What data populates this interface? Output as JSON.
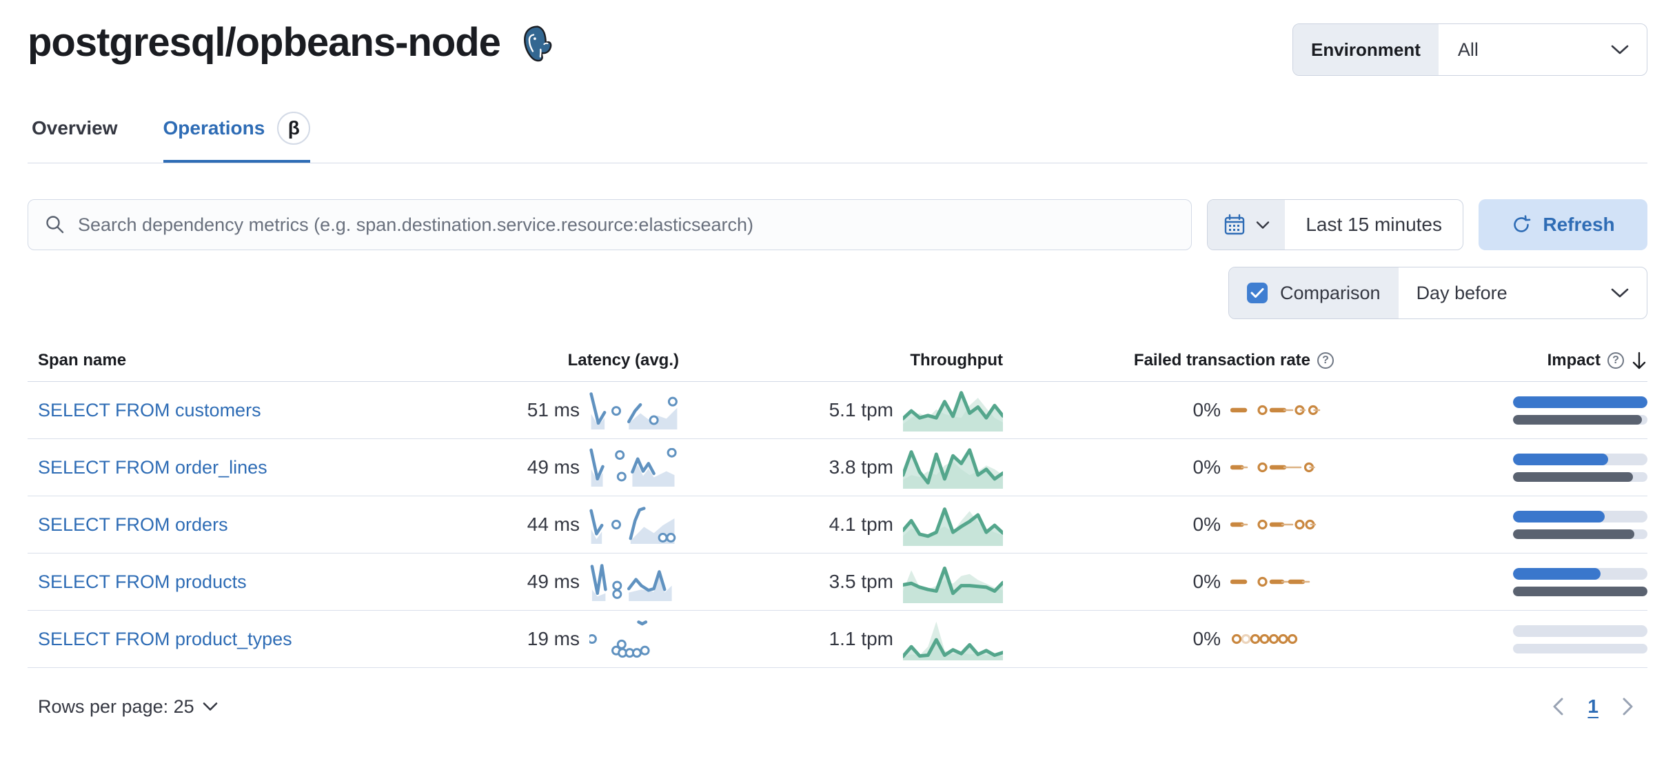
{
  "header": {
    "title": "postgresql/opbeans-node",
    "environment_label": "Environment",
    "environment_value": "All"
  },
  "tabs": {
    "overview": "Overview",
    "operations": "Operations",
    "beta_badge": "β"
  },
  "controls": {
    "search_placeholder": "Search dependency metrics (e.g. span.destination.service.resource:elasticsearch)",
    "time_range": "Last 15 minutes",
    "refresh_label": "Refresh",
    "comparison_label": "Comparison",
    "comparison_checked": true,
    "comparison_value": "Day before"
  },
  "table": {
    "columns": {
      "span_name": "Span name",
      "latency": "Latency (avg.)",
      "throughput": "Throughput",
      "failed_rate": "Failed transaction rate",
      "impact": "Impact"
    },
    "rows": [
      {
        "span_name": "SELECT FROM customers",
        "latency": "51 ms",
        "throughput": "5.1 tpm",
        "failed_rate": "0%",
        "impact": {
          "current": 100,
          "previous": 96
        },
        "latency_spark": {
          "segments": [
            [
              [
                2,
                8
              ],
              [
                10,
                84
              ],
              [
                17,
                56
              ]
            ],
            [
              [
                44,
                80
              ],
              [
                51,
                52
              ],
              [
                57,
                36
              ]
            ]
          ],
          "areas": [
            [
              [
                2,
                60
              ],
              [
                10,
                90
              ],
              [
                17,
                70
              ],
              [
                17,
                100
              ],
              [
                2,
                100
              ]
            ],
            [
              [
                44,
                84
              ],
              [
                57,
                58
              ],
              [
                66,
                74
              ],
              [
                76,
                64
              ],
              [
                86,
                72
              ],
              [
                98,
                44
              ],
              [
                98,
                100
              ],
              [
                44,
                100
              ]
            ]
          ],
          "dots": [
            [
              30,
              52
            ],
            [
              72,
              76
            ],
            [
              93,
              28
            ]
          ]
        },
        "throughput_spark": {
          "line": [
            28,
            48,
            30,
            36,
            30,
            72,
            34,
            95,
            42,
            58,
            30,
            62,
            35
          ],
          "comp": [
            14,
            30,
            42,
            30,
            52,
            40,
            34,
            30,
            62,
            82,
            55,
            30,
            18
          ]
        },
        "failed_spark": [
          {
            "t": "dash",
            "x": 2,
            "w": 12
          },
          {
            "t": "circle",
            "x": 27
          },
          {
            "t": "dash",
            "x": 40,
            "w": 12
          },
          {
            "t": "line",
            "x": 52,
            "w": 8
          },
          {
            "t": "circle",
            "x": 63
          },
          {
            "t": "line",
            "x": 68,
            "w": 4
          },
          {
            "t": "circle",
            "x": 76
          },
          {
            "t": "line",
            "x": 81,
            "w": 5
          }
        ]
      },
      {
        "span_name": "SELECT FROM order_lines",
        "latency": "49 ms",
        "throughput": "3.8 tpm",
        "failed_rate": "0%",
        "impact": {
          "current": 71,
          "previous": 89
        },
        "latency_spark": {
          "segments": [
            [
              [
                2,
                5
              ],
              [
                9,
                80
              ],
              [
                15,
                48
              ]
            ],
            [
              [
                48,
                62
              ],
              [
                54,
                28
              ],
              [
                60,
                60
              ],
              [
                66,
                40
              ],
              [
                72,
                66
              ]
            ]
          ],
          "areas": [
            [
              [
                2,
                55
              ],
              [
                9,
                86
              ],
              [
                15,
                64
              ],
              [
                15,
                100
              ],
              [
                2,
                100
              ]
            ],
            [
              [
                48,
                68
              ],
              [
                54,
                44
              ],
              [
                60,
                72
              ],
              [
                66,
                54
              ],
              [
                72,
                76
              ],
              [
                86,
                60
              ],
              [
                95,
                70
              ],
              [
                95,
                100
              ],
              [
                48,
                100
              ]
            ]
          ],
          "dots": [
            [
              34,
              18
            ],
            [
              36,
              74
            ],
            [
              92,
              12
            ]
          ]
        },
        "throughput_spark": {
          "line": [
            30,
            90,
            38,
            10,
            84,
            20,
            80,
            60,
            95,
            30,
            45,
            20,
            35
          ],
          "comp": [
            18,
            30,
            25,
            40,
            30,
            55,
            65,
            45,
            30,
            40,
            55,
            45,
            30
          ]
        },
        "failed_spark": [
          {
            "t": "dash",
            "x": 2,
            "w": 9
          },
          {
            "t": "line",
            "x": 11,
            "w": 5
          },
          {
            "t": "circle",
            "x": 27
          },
          {
            "t": "dash",
            "x": 40,
            "w": 12
          },
          {
            "t": "line",
            "x": 52,
            "w": 16
          },
          {
            "t": "circle",
            "x": 72
          },
          {
            "t": "line",
            "x": 77,
            "w": 4
          }
        ]
      },
      {
        "span_name": "SELECT FROM orders",
        "latency": "44 ms",
        "throughput": "4.1 tpm",
        "failed_rate": "0%",
        "impact": {
          "current": 68,
          "previous": 90
        },
        "latency_spark": {
          "segments": [
            [
              [
                2,
                14
              ],
              [
                8,
                74
              ],
              [
                14,
                52
              ]
            ],
            [
              [
                46,
                86
              ],
              [
                51,
                40
              ],
              [
                56,
                12
              ],
              [
                61,
                8
              ]
            ]
          ],
          "areas": [
            [
              [
                2,
                62
              ],
              [
                8,
                88
              ],
              [
                14,
                68
              ],
              [
                14,
                100
              ],
              [
                2,
                100
              ]
            ],
            [
              [
                46,
                92
              ],
              [
                61,
                56
              ],
              [
                72,
                72
              ],
              [
                82,
                52
              ],
              [
                95,
                34
              ],
              [
                95,
                100
              ],
              [
                46,
                100
              ]
            ]
          ],
          "dots": [
            [
              30,
              50
            ],
            [
              82,
              84
            ],
            [
              91,
              84
            ]
          ]
        },
        "throughput_spark": {
          "line": [
            35,
            60,
            25,
            20,
            30,
            90,
            30,
            45,
            58,
            75,
            30,
            48,
            28
          ],
          "comp": [
            20,
            40,
            30,
            25,
            35,
            45,
            30,
            60,
            85,
            55,
            40,
            30,
            22
          ]
        },
        "failed_spark": [
          {
            "t": "dash",
            "x": 2,
            "w": 9
          },
          {
            "t": "line",
            "x": 11,
            "w": 5
          },
          {
            "t": "circle",
            "x": 27
          },
          {
            "t": "dash",
            "x": 40,
            "w": 10
          },
          {
            "t": "line",
            "x": 50,
            "w": 10
          },
          {
            "t": "circle",
            "x": 63
          },
          {
            "t": "circle",
            "x": 73
          },
          {
            "t": "line",
            "x": 78,
            "w": 4
          }
        ]
      },
      {
        "span_name": "SELECT FROM products",
        "latency": "49 ms",
        "throughput": "3.5 tpm",
        "failed_rate": "0%",
        "impact": {
          "current": 65,
          "previous": 100
        },
        "latency_spark": {
          "segments": [
            [
              [
                3,
                10
              ],
              [
                9,
                80
              ],
              [
                14,
                8
              ],
              [
                18,
                70
              ]
            ],
            [
              [
                44,
                68
              ],
              [
                52,
                44
              ],
              [
                58,
                60
              ],
              [
                66,
                72
              ],
              [
                72,
                68
              ],
              [
                78,
                24
              ],
              [
                84,
                70
              ]
            ]
          ],
          "areas": [
            [
              [
                3,
                70
              ],
              [
                9,
                88
              ],
              [
                18,
                80
              ],
              [
                18,
                100
              ],
              [
                3,
                100
              ]
            ],
            [
              [
                44,
                78
              ],
              [
                58,
                70
              ],
              [
                72,
                76
              ],
              [
                78,
                36
              ],
              [
                84,
                78
              ],
              [
                92,
                60
              ],
              [
                92,
                100
              ],
              [
                44,
                100
              ]
            ]
          ],
          "dots": [
            [
              31,
              60
            ],
            [
              31,
              82
            ]
          ]
        },
        "throughput_spark": {
          "line": [
            42,
            46,
            36,
            30,
            26,
            85,
            20,
            40,
            40,
            38,
            36,
            26,
            48
          ],
          "comp": [
            25,
            80,
            35,
            30,
            40,
            55,
            45,
            65,
            70,
            55,
            45,
            35,
            28
          ]
        },
        "failed_spark": [
          {
            "t": "dash",
            "x": 2,
            "w": 12
          },
          {
            "t": "circle",
            "x": 27
          },
          {
            "t": "dash",
            "x": 40,
            "w": 10
          },
          {
            "t": "line",
            "x": 50,
            "w": 8
          },
          {
            "t": "dash",
            "x": 58,
            "w": 12
          },
          {
            "t": "line",
            "x": 70,
            "w": 6
          }
        ]
      },
      {
        "span_name": "SELECT FROM product_types",
        "latency": "19 ms",
        "throughput": "1.1 tpm",
        "failed_rate": "0%",
        "impact": {
          "current": 0,
          "previous": 0
        },
        "latency_spark": {
          "segments": [
            [
              [
                55,
                6
              ],
              [
                59,
                11
              ],
              [
                63,
                6
              ]
            ]
          ],
          "areas": [],
          "dots": [
            [
              3,
              50
            ],
            [
              30,
              80
            ],
            [
              36,
              64
            ],
            [
              37,
              86
            ],
            [
              45,
              86
            ],
            [
              53,
              86
            ],
            [
              62,
              80
            ]
          ]
        },
        "throughput_spark": {
          "line": [
            5,
            30,
            6,
            8,
            48,
            8,
            22,
            12,
            35,
            10,
            20,
            8,
            15
          ],
          "comp": [
            4,
            10,
            8,
            30,
            95,
            20,
            10,
            15,
            10,
            12,
            8,
            10,
            6
          ]
        },
        "failed_spark": [
          {
            "t": "circle",
            "x": 2
          },
          {
            "t": "circle",
            "x": 11,
            "faded": true
          },
          {
            "t": "circle",
            "x": 20
          },
          {
            "t": "circle",
            "x": 29
          },
          {
            "t": "circle",
            "x": 38
          },
          {
            "t": "circle",
            "x": 47
          },
          {
            "t": "circle",
            "x": 56
          }
        ]
      }
    ]
  },
  "footer": {
    "rows_per_page": "Rows per page: 25",
    "page": "1"
  },
  "colors": {
    "link_blue": "#2e6cb5",
    "latency_line": "#6092c0",
    "latency_area": "#d8e3f0",
    "throughput_line": "#54a68c",
    "throughput_area": "#bcded2",
    "throughput_comp_area": "#dcede6",
    "failed_orange": "#c9873f",
    "failed_light": "#dcb183",
    "impact_current": "#3a77cc",
    "impact_previous": "#5a6270"
  }
}
